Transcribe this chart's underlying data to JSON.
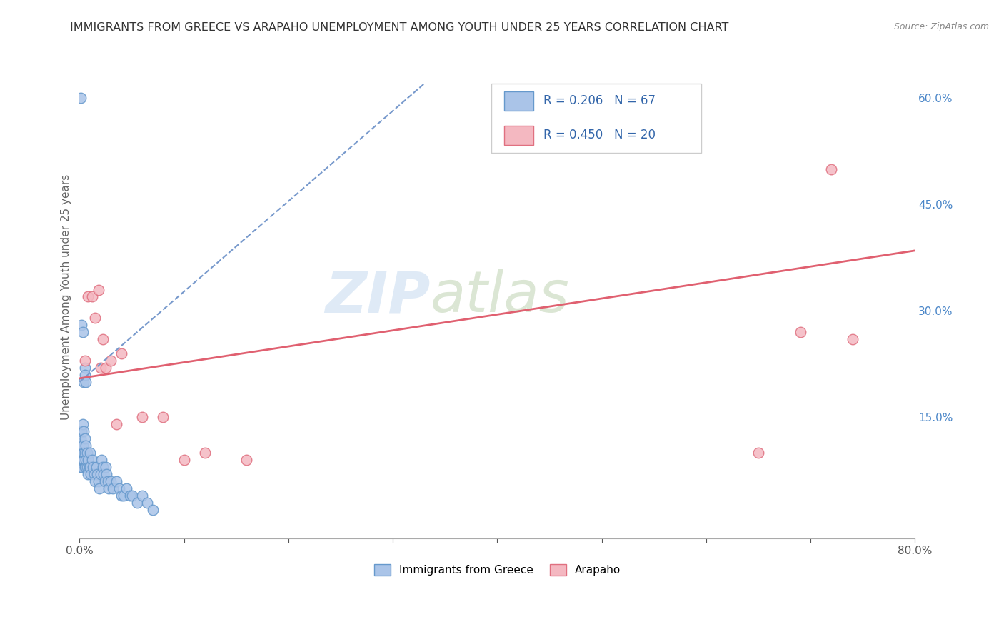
{
  "title": "IMMIGRANTS FROM GREECE VS ARAPAHO UNEMPLOYMENT AMONG YOUTH UNDER 25 YEARS CORRELATION CHART",
  "source": "Source: ZipAtlas.com",
  "ylabel": "Unemployment Among Youth under 25 years",
  "xlim": [
    0,
    0.8
  ],
  "ylim": [
    -0.02,
    0.66
  ],
  "xtick_positions": [
    0.0,
    0.1,
    0.2,
    0.3,
    0.4,
    0.5,
    0.6,
    0.7,
    0.8
  ],
  "xticklabels": [
    "0.0%",
    "",
    "",
    "",
    "",
    "",
    "",
    "",
    "80.0%"
  ],
  "ytick_positions": [
    0.0,
    0.15,
    0.3,
    0.45,
    0.6
  ],
  "yticklabels_right": [
    "",
    "15.0%",
    "30.0%",
    "45.0%",
    "60.0%"
  ],
  "legend_blue_r": "R = 0.206",
  "legend_blue_n": "N = 67",
  "legend_pink_r": "R = 0.450",
  "legend_pink_n": "N = 20",
  "legend_blue_label": "Immigrants from Greece",
  "legend_pink_label": "Arapaho",
  "blue_scatter_x": [
    0.001,
    0.001,
    0.001,
    0.001,
    0.001,
    0.002,
    0.002,
    0.002,
    0.002,
    0.003,
    0.003,
    0.003,
    0.003,
    0.004,
    0.004,
    0.004,
    0.005,
    0.005,
    0.005,
    0.006,
    0.006,
    0.006,
    0.007,
    0.007,
    0.008,
    0.008,
    0.009,
    0.01,
    0.01,
    0.011,
    0.012,
    0.013,
    0.014,
    0.015,
    0.016,
    0.017,
    0.018,
    0.019,
    0.02,
    0.021,
    0.022,
    0.023,
    0.024,
    0.025,
    0.026,
    0.027,
    0.028,
    0.03,
    0.032,
    0.035,
    0.038,
    0.04,
    0.042,
    0.045,
    0.048,
    0.05,
    0.055,
    0.06,
    0.065,
    0.07,
    0.001,
    0.002,
    0.003,
    0.004,
    0.005,
    0.005,
    0.006
  ],
  "blue_scatter_y": [
    0.08,
    0.09,
    0.1,
    0.11,
    0.12,
    0.08,
    0.09,
    0.1,
    0.13,
    0.09,
    0.1,
    0.11,
    0.14,
    0.09,
    0.1,
    0.13,
    0.08,
    0.1,
    0.12,
    0.08,
    0.09,
    0.11,
    0.08,
    0.1,
    0.07,
    0.09,
    0.08,
    0.08,
    0.1,
    0.07,
    0.09,
    0.08,
    0.07,
    0.06,
    0.08,
    0.07,
    0.06,
    0.05,
    0.07,
    0.09,
    0.08,
    0.07,
    0.06,
    0.08,
    0.07,
    0.06,
    0.05,
    0.06,
    0.05,
    0.06,
    0.05,
    0.04,
    0.04,
    0.05,
    0.04,
    0.04,
    0.03,
    0.04,
    0.03,
    0.02,
    0.6,
    0.28,
    0.27,
    0.2,
    0.22,
    0.21,
    0.2
  ],
  "pink_scatter_x": [
    0.005,
    0.008,
    0.012,
    0.015,
    0.018,
    0.02,
    0.022,
    0.025,
    0.03,
    0.035,
    0.04,
    0.06,
    0.08,
    0.1,
    0.12,
    0.16,
    0.65,
    0.69,
    0.72,
    0.74
  ],
  "pink_scatter_y": [
    0.23,
    0.32,
    0.32,
    0.29,
    0.33,
    0.22,
    0.26,
    0.22,
    0.23,
    0.14,
    0.24,
    0.15,
    0.15,
    0.09,
    0.1,
    0.09,
    0.1,
    0.27,
    0.5,
    0.26
  ],
  "blue_line_x": [
    0.0,
    0.33
  ],
  "blue_line_y": [
    0.2,
    0.62
  ],
  "pink_line_x": [
    0.0,
    0.8
  ],
  "pink_line_y": [
    0.205,
    0.385
  ],
  "watermark_zip": "ZIP",
  "watermark_atlas": "atlas",
  "background_color": "#ffffff",
  "grid_color": "#cccccc",
  "title_color": "#333333",
  "source_color": "#888888",
  "blue_face": "#aac4e8",
  "blue_edge": "#6699cc",
  "pink_face": "#f4b8c1",
  "pink_edge": "#e07080",
  "blue_line_color": "#7799cc",
  "pink_line_color": "#e06070",
  "right_tick_color": "#4a86c8",
  "ylabel_color": "#666666"
}
